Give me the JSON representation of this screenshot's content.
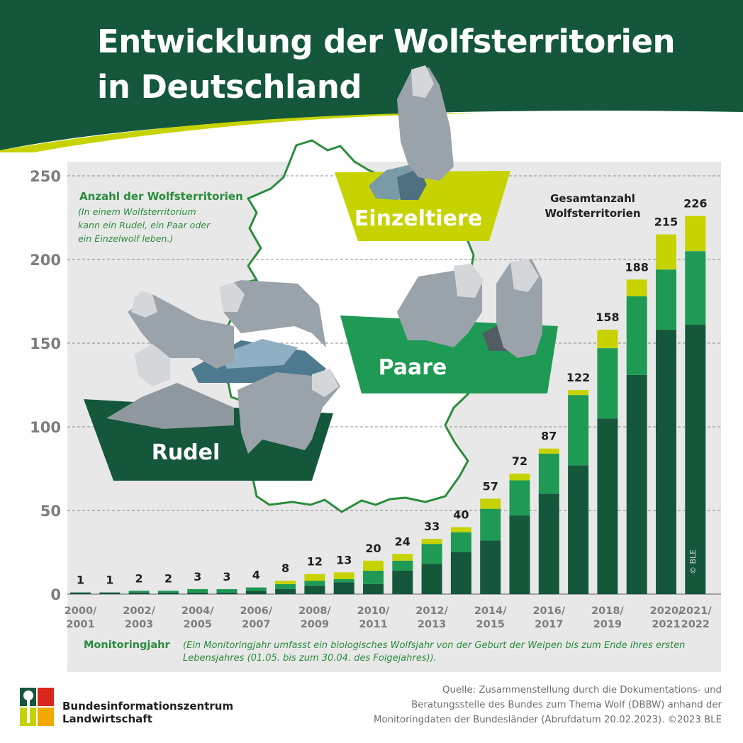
{
  "header": {
    "title_line1": "Entwicklung der Wolfsterritorien",
    "title_line2": "in Deutschland",
    "colors": {
      "dark_green": "#14573b",
      "light_green": "#c6d300",
      "mid_green": "#1e9a55"
    }
  },
  "chart_data": {
    "type": "bar",
    "stacked": true,
    "ylim": [
      0,
      250
    ],
    "yticks": [
      "0",
      "50",
      "100",
      "150",
      "200",
      "250"
    ],
    "ylabel": "Anzahl der Wolfsterritorien",
    "ylabel_note": [
      "(In einem Wolfsterritorium",
      "kann ein Rudel, ein Paar oder",
      "ein Einzelwolf leben.)"
    ],
    "xlabel": "Monitoringjahr",
    "xlabel_note": [
      "(Ein Monitoringjahr umfasst ein biologisches Wolfsjahr von der Geburt der Welpen bis zum Ende ihres ersten",
      "Lebensjahres (01.05. bis zum 30.04. des Folgejahres))."
    ],
    "total_label": [
      "Gesamtanzahl",
      "Wolfsterritorien"
    ],
    "categories": [
      "2000/2001",
      "2001/2002",
      "2002/2003",
      "2003/2004",
      "2004/2005",
      "2005/2006",
      "2006/2007",
      "2007/2008",
      "2008/2009",
      "2009/2010",
      "2010/2011",
      "2011/2012",
      "2012/2013",
      "2013/2014",
      "2014/2015",
      "2015/2016",
      "2016/2017",
      "2017/2018",
      "2018/2019",
      "2019/2020",
      "2020/2021",
      "2021/2022"
    ],
    "x_tick_labels": [
      {
        "index": 0,
        "line1": "2000/",
        "line2": "2001"
      },
      {
        "index": 2,
        "line1": "2002/",
        "line2": "2003"
      },
      {
        "index": 4,
        "line1": "2004/",
        "line2": "2005"
      },
      {
        "index": 6,
        "line1": "2006/",
        "line2": "2007"
      },
      {
        "index": 8,
        "line1": "2008/",
        "line2": "2009"
      },
      {
        "index": 10,
        "line1": "2010/",
        "line2": "2011"
      },
      {
        "index": 12,
        "line1": "2012/",
        "line2": "2013"
      },
      {
        "index": 14,
        "line1": "2014/",
        "line2": "2015"
      },
      {
        "index": 16,
        "line1": "2016/",
        "line2": "2017"
      },
      {
        "index": 18,
        "line1": "2018/",
        "line2": "2019"
      },
      {
        "index": 20,
        "line1": "2020/",
        "line2": "2021"
      },
      {
        "index": 21,
        "line1": "2021/",
        "line2": "2022"
      }
    ],
    "totals": [
      1,
      1,
      2,
      2,
      3,
      3,
      4,
      8,
      12,
      13,
      20,
      24,
      33,
      40,
      57,
      72,
      87,
      122,
      158,
      188,
      215,
      226
    ],
    "series": [
      {
        "name": "Rudel",
        "color": "#14573b",
        "values": [
          1,
          1,
          1,
          1,
          1,
          1,
          2,
          3,
          5,
          7,
          6,
          14,
          18,
          25,
          32,
          47,
          60,
          77,
          105,
          131,
          158,
          161
        ]
      },
      {
        "name": "Paare",
        "color": "#1e9a55",
        "values": [
          0,
          0,
          1,
          1,
          2,
          2,
          2,
          3,
          3,
          2,
          8,
          6,
          12,
          12,
          19,
          21,
          24,
          42,
          42,
          47,
          36,
          44
        ]
      },
      {
        "name": "Einzeltiere",
        "color": "#c6d300",
        "values": [
          0,
          0,
          0,
          0,
          0,
          0,
          0,
          2,
          4,
          4,
          6,
          4,
          3,
          3,
          6,
          4,
          3,
          3,
          11,
          10,
          21,
          21
        ]
      }
    ],
    "grid": true
  },
  "legend_labels": {
    "rudel": "Rudel",
    "paare": "Paare",
    "einzeltiere": "Einzeltiere"
  },
  "watermark": "© BLE",
  "footer": {
    "org_line1": "Bundesinformationszentrum",
    "org_line2": "Landwirtschaft",
    "source_line1": "Quelle: Zusammenstellung durch die Dokumentations- und",
    "source_line2": "Beratungsstelle des Bundes zum Thema Wolf (DBBW) anhand der",
    "source_line3": "Monitoringdaten der Bundesländer (Abrufdatum 20.02.2023). ©2023 BLE"
  }
}
